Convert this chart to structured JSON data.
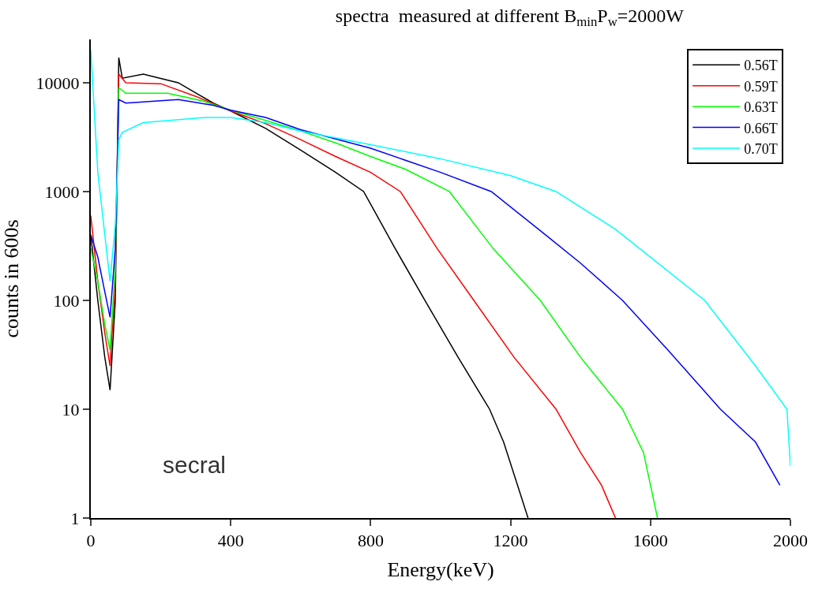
{
  "chart_data": {
    "type": "line",
    "title": "spectra  measured at different B$_{min}$P$_{w}$=2000W",
    "xlabel": "Energy(keV)",
    "ylabel": "counts in 600s",
    "annotations": [
      "secral"
    ],
    "xlim": [
      0,
      2000
    ],
    "xticks": [
      0,
      400,
      800,
      1200,
      1600,
      2000
    ],
    "ylim": [
      1,
      25000
    ],
    "yticks": [
      1,
      10,
      100,
      1000,
      10000
    ],
    "log": "y",
    "legend": "top right",
    "marker": "none",
    "line_style": "solid",
    "series": [
      {
        "name": "0.56T",
        "color": "#000000",
        "x": [
          0,
          20,
          40,
          55,
          70,
          80,
          90,
          150,
          250,
          350,
          400,
          500,
          600,
          700,
          780,
          870,
          955,
          1050,
          1140,
          1180,
          1220,
          1250
        ],
        "values": [
          400,
          100,
          30,
          15,
          100,
          17000,
          11000,
          12000,
          10000,
          6500,
          5500,
          3800,
          2400,
          1500,
          1000,
          300,
          100,
          30,
          10,
          5,
          2,
          1
        ]
      },
      {
        "name": "0.59T",
        "color": "#ff0000",
        "x": [
          0,
          20,
          40,
          55,
          70,
          80,
          100,
          200,
          300,
          400,
          500,
          600,
          700,
          800,
          885,
          990,
          1095,
          1210,
          1330,
          1400,
          1460,
          1500
        ],
        "values": [
          600,
          150,
          50,
          25,
          150,
          12000,
          10000,
          9800,
          7500,
          5500,
          4200,
          3000,
          2100,
          1500,
          1000,
          300,
          100,
          30,
          10,
          4,
          2,
          1
        ]
      },
      {
        "name": "0.63T",
        "color": "#00ff00",
        "x": [
          0,
          20,
          40,
          55,
          70,
          80,
          100,
          220,
          320,
          400,
          500,
          600,
          700,
          800,
          900,
          1025,
          1150,
          1285,
          1400,
          1520,
          1580,
          1620
        ],
        "values": [
          300,
          150,
          60,
          35,
          200,
          9000,
          8000,
          8000,
          6800,
          5600,
          4500,
          3600,
          2800,
          2100,
          1600,
          1000,
          300,
          100,
          30,
          10,
          4,
          1
        ]
      },
      {
        "name": "0.66T",
        "color": "#0000ff",
        "x": [
          0,
          20,
          40,
          55,
          70,
          80,
          100,
          250,
          350,
          400,
          500,
          600,
          800,
          1000,
          1145,
          1300,
          1400,
          1520,
          1650,
          1800,
          1900,
          1970
        ],
        "values": [
          400,
          250,
          120,
          70,
          300,
          7000,
          6500,
          7000,
          6200,
          5600,
          4800,
          3700,
          2500,
          1500,
          1000,
          400,
          220,
          100,
          35,
          10,
          5,
          2
        ]
      },
      {
        "name": "0.70T",
        "color": "#00ffff",
        "x": [
          0,
          20,
          40,
          55,
          70,
          80,
          90,
          150,
          330,
          400,
          500,
          600,
          800,
          1000,
          1200,
          1330,
          1500,
          1755,
          1900,
          1990,
          2000
        ],
        "values": [
          20000,
          1500,
          400,
          150,
          500,
          3000,
          3500,
          4300,
          4800,
          4800,
          4300,
          3600,
          2700,
          2000,
          1400,
          1000,
          450,
          100,
          25,
          10,
          3
        ]
      }
    ]
  }
}
